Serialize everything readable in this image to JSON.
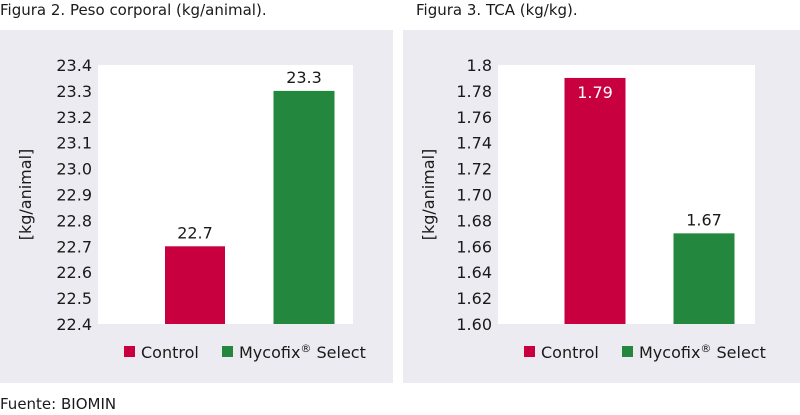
{
  "source": "Fuente: BIOMIN",
  "colors": {
    "control": "#c8003f",
    "mycofix": "#23873e",
    "panel": "#ecebf1",
    "plot_bg": "#ffffff"
  },
  "legend": {
    "control": "Control",
    "mycofix_name": "Mycofix",
    "mycofix_sup": "®",
    "mycofix_suffix": " Select"
  },
  "chart_data": [
    {
      "type": "bar",
      "title": "Figura 2. Peso corporal (kg/animal).",
      "ylabel": "[kg/animal]",
      "xlabel": "",
      "categories": [
        "Control",
        "Mycofix® Select"
      ],
      "values": [
        22.7,
        23.3
      ],
      "value_labels": [
        "22.7",
        "23.3"
      ],
      "ylim": [
        22.4,
        23.4
      ],
      "yticks": [
        "22.4",
        "22.5",
        "22.6",
        "22.7",
        "22.8",
        "22.9",
        "23.0",
        "23.1",
        "23.2",
        "23.3",
        "23.4"
      ],
      "grid": false,
      "legend_position": "bottom"
    },
    {
      "type": "bar",
      "title": "Figura 3. TCA (kg/kg).",
      "ylabel": "[kg/animal]",
      "xlabel": "",
      "categories": [
        "Control",
        "Mycofix® Select"
      ],
      "values": [
        1.79,
        1.67
      ],
      "value_labels": [
        "1.79",
        "1.67"
      ],
      "ylim": [
        1.6,
        1.8
      ],
      "yticks": [
        "1.60",
        "1.62",
        "1.64",
        "1.66",
        "1.68",
        "1.70",
        "1.72",
        "1.74",
        "1.76",
        "1.78",
        "1.8"
      ],
      "grid": false,
      "legend_position": "bottom"
    }
  ]
}
